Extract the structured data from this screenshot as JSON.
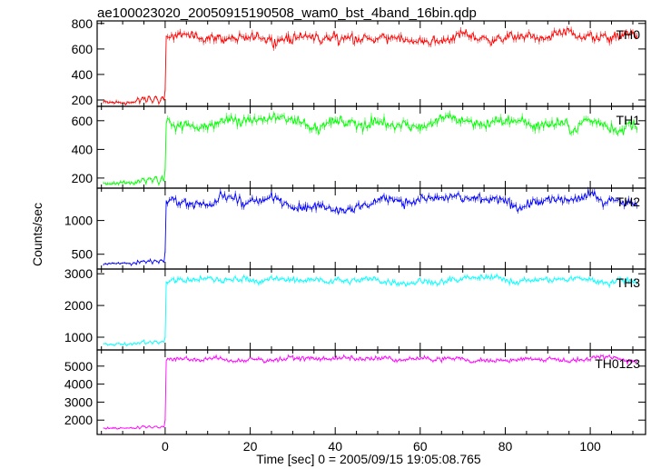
{
  "chart_data": {
    "type": "line",
    "title": "ae100023020_20050915190508_wam0_bst_4band_16bin.qdp",
    "xlabel": "Time [sec] 0 = 2005/09/15 19:05:08.765",
    "ylabel": "Counts/sec",
    "xlim": [
      -16,
      113
    ],
    "xticks": [
      0,
      20,
      40,
      60,
      80,
      100
    ],
    "x_step": 0.25,
    "event_time": 0,
    "grid": false,
    "panels": [
      {
        "name": "TH0",
        "color": "#ff0000",
        "ylim": [
          150,
          820
        ],
        "yticks": [
          200,
          400,
          600,
          800
        ],
        "baseline": 180,
        "baseline_noise": 25,
        "transition": [
          260,
          320
        ],
        "level": 690,
        "noise": 45
      },
      {
        "name": "TH1",
        "color": "#00ff00",
        "ylim": [
          130,
          700
        ],
        "yticks": [
          200,
          400,
          600
        ],
        "baseline": 165,
        "baseline_noise": 22,
        "transition": [
          200,
          290
        ],
        "level": 590,
        "noise": 45
      },
      {
        "name": "TH2",
        "color": "#0000ff",
        "ylim": [
          280,
          1480
        ],
        "yticks": [
          500,
          1000
        ],
        "baseline": 360,
        "baseline_noise": 30,
        "transition": [
          450,
          650
        ],
        "level": 1290,
        "noise": 80
      },
      {
        "name": "TH3",
        "color": "#00ffff",
        "ylim": [
          600,
          3150
        ],
        "yticks": [
          1000,
          2000,
          3000
        ],
        "baseline": 780,
        "baseline_noise": 60,
        "transition": [
          900,
          1200
        ],
        "level": 2800,
        "noise": 110
      },
      {
        "name": "TH0123",
        "color": "#ff00ff",
        "ylim": [
          1200,
          5900
        ],
        "yticks": [
          2000,
          3000,
          4000,
          5000
        ],
        "baseline": 1550,
        "baseline_noise": 70,
        "transition": [
          1700,
          2400
        ],
        "level": 5380,
        "noise": 150
      }
    ]
  }
}
